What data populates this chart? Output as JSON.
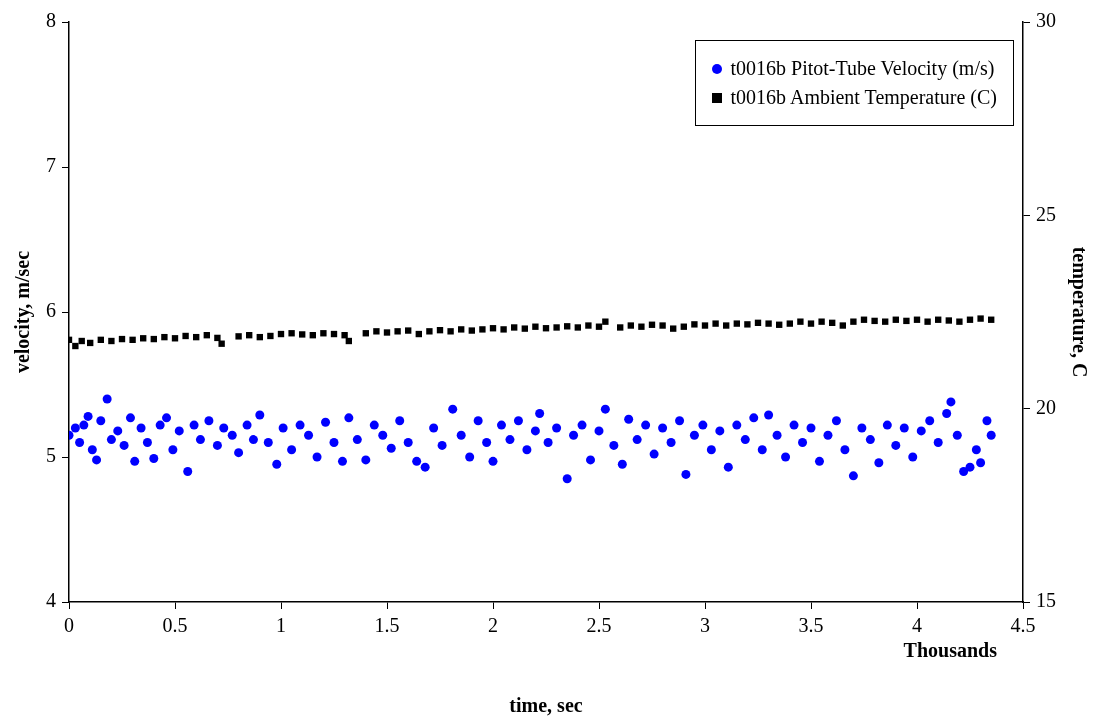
{
  "chart_data": {
    "type": "scatter",
    "xlabel": "time, sec",
    "ylabel": "velocity, m/sec",
    "y2label": "temperature, C",
    "annotations": [
      "Thousands"
    ],
    "xlim": [
      0,
      4.5
    ],
    "xticks": [
      0,
      0.5,
      1,
      1.5,
      2,
      2.5,
      3,
      3.5,
      4,
      4.5
    ],
    "ylim": [
      4,
      8
    ],
    "yticks": [
      4,
      5,
      6,
      7,
      8
    ],
    "y2lim": [
      15,
      30
    ],
    "y2ticks": [
      15,
      20,
      25,
      30
    ],
    "legend": "top right",
    "series": [
      {
        "name": "t0016b Pitot-Tube Velocity (m/s)",
        "color": "#0000ff",
        "marker": "circle",
        "x": [
          0,
          0.03,
          0.05,
          0.07,
          0.09,
          0.11,
          0.13,
          0.15,
          0.18,
          0.2,
          0.23,
          0.26,
          0.29,
          0.31,
          0.34,
          0.37,
          0.4,
          0.43,
          0.46,
          0.49,
          0.52,
          0.56,
          0.59,
          0.62,
          0.66,
          0.7,
          0.73,
          0.77,
          0.8,
          0.84,
          0.87,
          0.9,
          0.94,
          0.98,
          1.01,
          1.05,
          1.09,
          1.13,
          1.17,
          1.21,
          1.25,
          1.29,
          1.32,
          1.36,
          1.4,
          1.44,
          1.48,
          1.52,
          1.56,
          1.6,
          1.64,
          1.68,
          1.72,
          1.76,
          1.81,
          1.85,
          1.89,
          1.93,
          1.97,
          2,
          2.04,
          2.08,
          2.12,
          2.16,
          2.2,
          2.22,
          2.26,
          2.3,
          2.35,
          2.38,
          2.42,
          2.46,
          2.5,
          2.53,
          2.57,
          2.61,
          2.64,
          2.68,
          2.72,
          2.76,
          2.8,
          2.84,
          2.88,
          2.91,
          2.95,
          2.99,
          3.03,
          3.07,
          3.11,
          3.15,
          3.19,
          3.23,
          3.27,
          3.3,
          3.34,
          3.38,
          3.42,
          3.46,
          3.5,
          3.54,
          3.58,
          3.62,
          3.66,
          3.7,
          3.74,
          3.78,
          3.82,
          3.86,
          3.9,
          3.94,
          3.98,
          4.02,
          4.06,
          4.1,
          4.14,
          4.16,
          4.19,
          4.22,
          4.25,
          4.28,
          4.3,
          4.33,
          4.35
        ],
        "values": [
          5.15,
          5.2,
          5.1,
          5.22,
          5.28,
          5.05,
          4.98,
          5.25,
          5.4,
          5.12,
          5.18,
          5.08,
          5.27,
          4.97,
          5.2,
          5.1,
          4.99,
          5.22,
          5.27,
          5.05,
          5.18,
          4.9,
          5.22,
          5.12,
          5.25,
          5.08,
          5.2,
          5.15,
          5.03,
          5.22,
          5.12,
          5.29,
          5.1,
          4.95,
          5.2,
          5.05,
          5.22,
          5.15,
          5,
          5.24,
          5.1,
          4.97,
          5.27,
          5.12,
          4.98,
          5.22,
          5.15,
          5.06,
          5.25,
          5.1,
          4.97,
          4.93,
          5.2,
          5.08,
          5.33,
          5.15,
          5,
          5.25,
          5.1,
          4.97,
          5.22,
          5.12,
          5.25,
          5.05,
          5.18,
          5.3,
          5.1,
          5.2,
          4.85,
          5.15,
          5.22,
          4.98,
          5.18,
          5.33,
          5.08,
          4.95,
          5.26,
          5.12,
          5.22,
          5.02,
          5.2,
          5.1,
          5.25,
          4.88,
          5.15,
          5.22,
          5.05,
          5.18,
          4.93,
          5.22,
          5.12,
          5.27,
          5.05,
          5.29,
          5.15,
          5,
          5.22,
          5.1,
          5.2,
          4.97,
          5.15,
          5.25,
          5.05,
          4.87,
          5.2,
          5.12,
          4.96,
          5.22,
          5.08,
          5.2,
          5,
          5.18,
          5.25,
          5.1,
          5.3,
          5.38,
          5.15,
          4.9,
          4.93,
          5.05,
          4.96,
          5.25,
          5.15
        ]
      },
      {
        "name": "t0016b Ambient Temperature (C)",
        "color": "#000000",
        "marker": "square",
        "axis": "y2",
        "x": [
          0,
          0.03,
          0.06,
          0.1,
          0.15,
          0.2,
          0.25,
          0.3,
          0.35,
          0.4,
          0.45,
          0.5,
          0.55,
          0.6,
          0.65,
          0.7,
          0.72,
          0.8,
          0.85,
          0.9,
          0.95,
          1,
          1.05,
          1.1,
          1.15,
          1.2,
          1.25,
          1.3,
          1.32,
          1.4,
          1.45,
          1.5,
          1.55,
          1.6,
          1.65,
          1.7,
          1.75,
          1.8,
          1.85,
          1.9,
          1.95,
          2,
          2.05,
          2.1,
          2.15,
          2.2,
          2.25,
          2.3,
          2.35,
          2.4,
          2.45,
          2.5,
          2.53,
          2.6,
          2.65,
          2.7,
          2.75,
          2.8,
          2.85,
          2.9,
          2.95,
          3,
          3.05,
          3.1,
          3.15,
          3.2,
          3.25,
          3.3,
          3.35,
          3.4,
          3.45,
          3.5,
          3.55,
          3.6,
          3.65,
          3.7,
          3.75,
          3.8,
          3.85,
          3.9,
          3.95,
          4,
          4.05,
          4.1,
          4.15,
          4.2,
          4.25,
          4.3,
          4.35
        ],
        "values": [
          21.78,
          21.62,
          21.75,
          21.7,
          21.78,
          21.75,
          21.8,
          21.78,
          21.82,
          21.8,
          21.85,
          21.82,
          21.88,
          21.85,
          21.9,
          21.83,
          21.68,
          21.87,
          21.9,
          21.85,
          21.88,
          21.93,
          21.95,
          21.92,
          21.9,
          21.95,
          21.93,
          21.9,
          21.75,
          21.95,
          22,
          21.97,
          22,
          22.02,
          21.93,
          22,
          22.03,
          22,
          22.05,
          22.02,
          22.05,
          22.08,
          22.05,
          22.1,
          22.07,
          22.12,
          22.08,
          22.1,
          22.13,
          22.1,
          22.15,
          22.12,
          22.25,
          22.1,
          22.15,
          22.12,
          22.17,
          22.15,
          22.07,
          22.12,
          22.18,
          22.15,
          22.2,
          22.15,
          22.2,
          22.18,
          22.22,
          22.2,
          22.17,
          22.2,
          22.25,
          22.2,
          22.25,
          22.22,
          22.15,
          22.25,
          22.3,
          22.27,
          22.25,
          22.3,
          22.27,
          22.3,
          22.25,
          22.3,
          22.28,
          22.25,
          22.3,
          22.33,
          22.3
        ]
      }
    ]
  }
}
